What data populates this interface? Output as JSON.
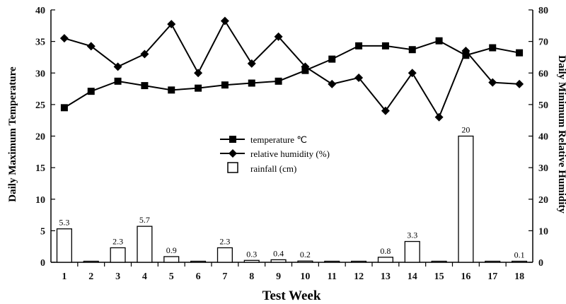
{
  "chart_data": {
    "type": "bar+line",
    "x_categories": [
      "1",
      "2",
      "3",
      "4",
      "5",
      "6",
      "7",
      "8",
      "9",
      "10",
      "11",
      "12",
      "13",
      "14",
      "15",
      "16",
      "17",
      "18"
    ],
    "xlabel": "Test Week",
    "ylabel_left": "Daily Maximum Temperature",
    "ylabel_right": "Daily Minimum Relative Humidity",
    "ylim_left": [
      0,
      40
    ],
    "ylim_right": [
      0,
      80
    ],
    "left_ticks": [
      "0",
      "5",
      "10",
      "15",
      "20",
      "25",
      "30",
      "35",
      "40"
    ],
    "right_ticks": [
      "0",
      "10",
      "20",
      "30",
      "40",
      "50",
      "60",
      "70",
      "80"
    ],
    "grid": false,
    "legend_placement": "center",
    "series": [
      {
        "name": "temperature ℃",
        "type": "line",
        "marker": "square",
        "axis": "left",
        "values": [
          24.5,
          27.1,
          28.7,
          28.0,
          27.3,
          27.6,
          28.1,
          28.4,
          28.7,
          30.4,
          32.2,
          34.3,
          34.3,
          33.7,
          35.1,
          32.8,
          34.0,
          33.2
        ]
      },
      {
        "name": "relative humidity (%)",
        "type": "line",
        "marker": "diamond",
        "axis": "right",
        "values": [
          71,
          68.5,
          62,
          66,
          75.5,
          60,
          76.5,
          63,
          71.5,
          62,
          56.5,
          58.5,
          48,
          60,
          46,
          67,
          57,
          56.5
        ]
      },
      {
        "name": "rainfall (cm)",
        "type": "bar",
        "axis": "left",
        "values": [
          5.3,
          0,
          2.3,
          5.7,
          0.9,
          0,
          2.3,
          0.3,
          0.4,
          0.2,
          0,
          0,
          0.8,
          3.3,
          0,
          20,
          0,
          0.1
        ],
        "labels": [
          "5.3",
          "",
          "2.3",
          "5.7",
          "0.9",
          "",
          "2.3",
          "0.3",
          "0.4",
          "0.2",
          "",
          "",
          "0.8",
          "3.3",
          "",
          "20",
          "",
          "0.1"
        ]
      }
    ]
  }
}
